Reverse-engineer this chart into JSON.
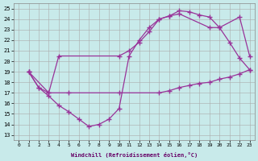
{
  "xlabel": "Windchill (Refroidissement éolien,°C)",
  "xlim": [
    -0.5,
    23.5
  ],
  "ylim": [
    12.5,
    25.5
  ],
  "xticks": [
    0,
    1,
    2,
    3,
    4,
    5,
    6,
    7,
    8,
    9,
    10,
    11,
    12,
    13,
    14,
    15,
    16,
    17,
    18,
    19,
    20,
    21,
    22,
    23
  ],
  "yticks": [
    13,
    14,
    15,
    16,
    17,
    18,
    19,
    20,
    21,
    22,
    23,
    24,
    25
  ],
  "bg_color": "#c8eaea",
  "line_color": "#993399",
  "line1_x": [
    1,
    2,
    3,
    5,
    10,
    14,
    15,
    16,
    17,
    18,
    19,
    20,
    21,
    22,
    23
  ],
  "line1_y": [
    19,
    17.5,
    17.0,
    17.0,
    17.0,
    17.0,
    17.2,
    17.5,
    17.7,
    17.9,
    18.0,
    18.3,
    18.5,
    18.8,
    19.2
  ],
  "line2_x": [
    1,
    2,
    3,
    4,
    5,
    6,
    7,
    8,
    9,
    10,
    11,
    12,
    13,
    14,
    15,
    16,
    17,
    18,
    19,
    20,
    21,
    22,
    23
  ],
  "line2_y": [
    19,
    17.5,
    16.7,
    15.8,
    15.2,
    14.5,
    13.8,
    14.0,
    14.5,
    15.5,
    20.5,
    22.0,
    23.2,
    24.0,
    24.3,
    24.8,
    24.7,
    24.4,
    24.2,
    23.2,
    21.8,
    20.3,
    19.2
  ],
  "line3_x": [
    1,
    3,
    4,
    10,
    11,
    12,
    13,
    14,
    15,
    16,
    19,
    20,
    22,
    23
  ],
  "line3_y": [
    19,
    17.0,
    20.5,
    20.5,
    21.0,
    21.8,
    22.8,
    24.0,
    24.3,
    24.5,
    23.2,
    23.2,
    24.2,
    20.5
  ]
}
